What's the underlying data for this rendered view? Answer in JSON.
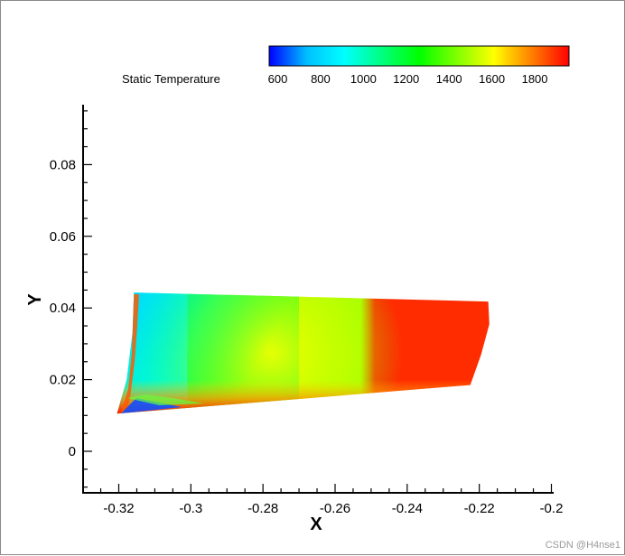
{
  "chart_data": {
    "type": "heatmap",
    "title": "",
    "xlabel": "X",
    "ylabel": "Y",
    "xlim": [
      -0.33,
      -0.2
    ],
    "ylim": [
      -0.012,
      0.097
    ],
    "x_ticks": [
      -0.32,
      -0.3,
      -0.28,
      -0.26,
      -0.24,
      -0.22,
      -0.2
    ],
    "x_tick_labels": [
      "-0.32",
      "-0.3",
      "-0.28",
      "-0.26",
      "-0.24",
      "-0.22",
      "-0.2"
    ],
    "y_ticks": [
      0,
      0.02,
      0.04,
      0.06,
      0.08
    ],
    "y_tick_labels": [
      "0",
      "0.02",
      "0.04",
      "0.06",
      "0.08"
    ],
    "grid": false,
    "colorbar": {
      "label": "Static Temperature",
      "range": [
        560,
        1960
      ],
      "ticks": [
        600,
        800,
        1000,
        1200,
        1400,
        1600,
        1800
      ],
      "tick_labels": [
        "600",
        "800",
        "1000",
        "1200",
        "1400",
        "1600",
        "1800"
      ],
      "colormap": [
        "#0000ff",
        "#00bfff",
        "#00ffff",
        "#00ff80",
        "#00ff00",
        "#80ff00",
        "#ffff00",
        "#ff8000",
        "#ff0000"
      ]
    },
    "field": {
      "region_outline": [
        [
          -0.3158,
          0.0443
        ],
        [
          -0.2175,
          0.0418
        ],
        [
          -0.2172,
          0.0355
        ],
        [
          -0.2195,
          0.027
        ],
        [
          -0.2225,
          0.0185
        ],
        [
          -0.3205,
          0.0105
        ],
        [
          -0.3178,
          0.02
        ],
        [
          -0.3162,
          0.033
        ]
      ],
      "temperature_bands": [
        {
          "temperature": 900,
          "x_from": -0.3155,
          "x_to": -0.301
        },
        {
          "temperature": 1200,
          "x_from": -0.301,
          "x_to": -0.27
        },
        {
          "temperature": 1500,
          "x_from": -0.27,
          "x_to": -0.253
        },
        {
          "temperature": 1900,
          "x_from": -0.249,
          "x_to": -0.2172
        }
      ],
      "hot_bottom_edge_temperature": 1850,
      "min_temperature_near_leading_edge": 650
    }
  },
  "watermark": "CSDN @H4nse1"
}
